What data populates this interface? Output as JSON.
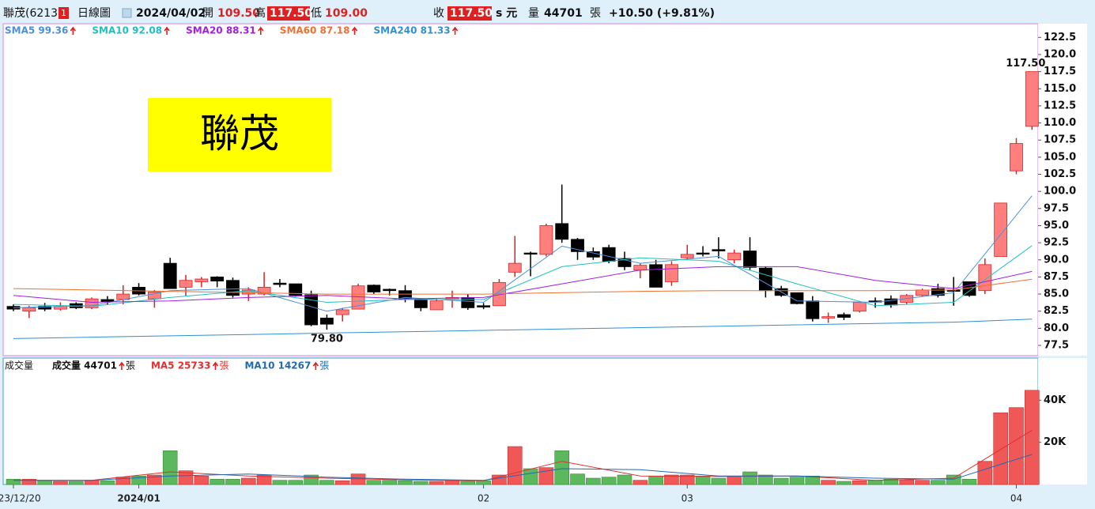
{
  "header": {
    "name": "聯茂(6213)",
    "badge": "1",
    "period": "日線圖",
    "date": "2024/04/02",
    "open_label": "開",
    "open": "109.50",
    "high_label": "高",
    "high": "117.50",
    "low_label": "低",
    "low": "109.00",
    "close_label": "收",
    "close": "117.50",
    "unit": "s 元",
    "volume_label": "量",
    "volume": "44701",
    "volume_unit": "張",
    "change": "+10.50 (+9.81%)"
  },
  "overlay_label": "聯茂",
  "chart_data": [
    {
      "type": "candlestick",
      "ylim": [
        76,
        124.5
      ],
      "yticks": [
        77.5,
        {
          "value": 80,
          "label": "80.0"
        },
        82.5,
        {
          "value": 85,
          "label": "85.0"
        },
        87.5,
        {
          "value": 90,
          "label": "90.0"
        },
        92.5,
        {
          "value": 95,
          "label": "95.0"
        },
        97.5,
        {
          "value": 100,
          "label": "100.0"
        },
        102.5,
        {
          "value": 105,
          "label": "105.0"
        },
        107.5,
        {
          "value": 110,
          "label": "110.0"
        },
        112.5,
        {
          "value": 115,
          "label": "115.0"
        },
        117.5,
        {
          "value": 120,
          "label": "120.0"
        },
        122.5
      ],
      "x_labels": [
        {
          "index": 0,
          "label": "2023/12/20"
        },
        {
          "index": 8,
          "label": "2024/01"
        },
        {
          "index": 30,
          "label": "02"
        },
        {
          "index": 43,
          "label": "03"
        },
        {
          "index": 64,
          "label": "04"
        }
      ],
      "up_color": "#ff7f7f",
      "up_edge": "#e02020",
      "down_color": "#000000",
      "open": [
        83.2,
        82.5,
        83.2,
        82.8,
        83.6,
        83,
        84.2,
        84.2,
        86,
        84.3,
        89.5,
        86,
        86.8,
        87.5,
        87,
        85,
        85,
        86.6,
        86.5,
        84.9,
        81.5,
        82,
        82.8,
        86.3,
        85.7,
        85.5,
        84.3,
        82.7,
        84.2,
        84.5,
        83.3,
        83.3,
        88.2,
        91,
        90.8,
        95.3,
        93,
        91.2,
        91.8,
        90.2,
        88.5,
        89.3,
        86.8,
        90.3,
        91,
        91.5,
        90,
        91.3,
        88.8,
        85.8,
        85.2,
        84,
        81.5,
        82,
        82.5,
        84,
        84.3,
        83.8,
        84.8,
        85.8,
        85.6,
        86.8,
        85.5,
        90.5,
        103,
        109.5
      ],
      "high": [
        83.5,
        83.3,
        83.7,
        83.8,
        83.8,
        84.5,
        84.7,
        86.3,
        86.6,
        85.6,
        90.3,
        87.8,
        87.5,
        87.6,
        87.4,
        86,
        88.2,
        87.2,
        86.5,
        85.5,
        82,
        83,
        86.5,
        86.4,
        85.8,
        86.3,
        84.3,
        84.3,
        85.5,
        85,
        83.7,
        87.2,
        93.5,
        91.2,
        95.3,
        101,
        93.2,
        91.8,
        92.2,
        91.2,
        89.5,
        90,
        89.8,
        92.2,
        92,
        93.3,
        91.5,
        93.3,
        89,
        86.2,
        85.2,
        84.7,
        82.3,
        82.3,
        83.9,
        84.5,
        84.8,
        85,
        85.8,
        86.5,
        87.5,
        86.8,
        90.2,
        98.3,
        107.8,
        117.5
      ],
      "low": [
        82.5,
        81.5,
        82.5,
        82.6,
        82.8,
        82.8,
        83.5,
        83.5,
        84.8,
        83,
        85.8,
        84.7,
        86,
        86,
        84.5,
        84,
        84.8,
        86,
        84.6,
        80.3,
        79.8,
        81,
        82.8,
        85,
        84.8,
        83.8,
        82.5,
        82.7,
        83,
        82.7,
        82.8,
        83.3,
        87.5,
        87.6,
        90.5,
        92.5,
        90,
        90,
        89.5,
        88.5,
        87.3,
        86,
        86.2,
        90,
        90.5,
        90.2,
        89.5,
        88.5,
        84.5,
        84.6,
        83.5,
        81,
        80.8,
        81.2,
        82.3,
        83,
        83,
        83.5,
        84.6,
        84.5,
        83.3,
        84.6,
        85,
        90.5,
        102.5,
        109
      ],
      "close": [
        82.8,
        83,
        82.8,
        83.2,
        83,
        84.3,
        83.9,
        85,
        85,
        85.3,
        85.8,
        87,
        87.2,
        86.9,
        84.8,
        85.6,
        86,
        86.4,
        84.8,
        80.5,
        80.6,
        82.7,
        86.2,
        85.3,
        85.5,
        84.2,
        83,
        84,
        84.5,
        83,
        83.1,
        86.7,
        89.5,
        90.9,
        95,
        93,
        91.2,
        90.4,
        89.8,
        89,
        89.2,
        86,
        89.3,
        90.8,
        90.9,
        91.3,
        91,
        88.9,
        85.5,
        84.8,
        83.6,
        81.4,
        81.7,
        81.6,
        83.8,
        83.9,
        83.4,
        84.8,
        85.6,
        84.8,
        85.4,
        84.8,
        89.3,
        98.3,
        107,
        117.5
      ],
      "annotations": [
        {
          "index": 20,
          "text": "79.80"
        },
        {
          "index": 65,
          "text": "117.50"
        }
      ],
      "series": [
        {
          "name": "SMA5 99.36",
          "color": "#4a90d9",
          "x": [
            0,
            5,
            10,
            15,
            20,
            25,
            30,
            35,
            40,
            45,
            50,
            55,
            60,
            65
          ],
          "values": [
            83,
            83.3,
            85.5,
            85.8,
            82.5,
            84.5,
            83.8,
            92,
            89.5,
            90.5,
            84,
            83.8,
            85.2,
            99.36
          ]
        },
        {
          "name": "SMA10 92.08",
          "color": "#20c0c0",
          "x": [
            0,
            5,
            10,
            15,
            20,
            25,
            30,
            35,
            40,
            45,
            50,
            55,
            60,
            65
          ],
          "values": [
            83.5,
            83.2,
            84.5,
            85.5,
            83.8,
            84.2,
            84.2,
            89,
            90.3,
            89.8,
            86.5,
            83.3,
            83.8,
            92.08
          ]
        },
        {
          "name": "SMA20 88.31",
          "color": "#a020e0",
          "x": [
            0,
            5,
            10,
            15,
            20,
            25,
            30,
            35,
            40,
            45,
            50,
            55,
            60,
            65
          ],
          "values": [
            84.8,
            83.8,
            84,
            84.5,
            84.8,
            84.3,
            84.5,
            86.5,
            88.5,
            89,
            89,
            87,
            85.8,
            88.31
          ]
        },
        {
          "name": "SMA60 87.18",
          "color": "#f07030",
          "x": [
            0,
            5,
            10,
            15,
            20,
            25,
            30,
            35,
            40,
            45,
            50,
            55,
            60,
            65
          ],
          "values": [
            85.8,
            85.6,
            85.4,
            85.2,
            85,
            85,
            85,
            85.2,
            85.4,
            85.5,
            85.5,
            85.5,
            85.6,
            87.18
          ]
        },
        {
          "name": "SMA240 81.33",
          "color": "#3090d0",
          "x": [
            0,
            5,
            10,
            15,
            20,
            25,
            30,
            35,
            40,
            45,
            50,
            55,
            60,
            65
          ],
          "values": [
            78.5,
            78.7,
            78.9,
            79.1,
            79.3,
            79.5,
            79.7,
            79.9,
            80.1,
            80.3,
            80.5,
            80.7,
            80.9,
            81.33
          ]
        }
      ]
    },
    {
      "type": "volume",
      "title": "成交量",
      "ylim": [
        0,
        60000
      ],
      "yticks": [
        {
          "value": 20000,
          "label": "20K"
        },
        {
          "value": 40000,
          "label": "40K"
        }
      ],
      "up_color": "#f05858",
      "down_color": "#5cb85c",
      "values": [
        2500,
        2500,
        1800,
        1500,
        1500,
        2000,
        1800,
        3500,
        4000,
        4500,
        16000,
        6500,
        4000,
        2500,
        2500,
        3000,
        4500,
        2000,
        2000,
        4500,
        2000,
        1800,
        5000,
        2000,
        2000,
        1800,
        1500,
        1500,
        2000,
        1500,
        1800,
        4500,
        18000,
        7500,
        8000,
        16000,
        5000,
        3000,
        3500,
        4500,
        2000,
        4000,
        4500,
        4500,
        4000,
        3000,
        3500,
        6000,
        4500,
        3000,
        3500,
        4000,
        2000,
        1500,
        1800,
        2000,
        2500,
        2200,
        2000,
        2000,
        4500,
        2500,
        11000,
        34000,
        36500,
        44701
      ],
      "legend": {
        "label": "成交量 44701",
        "unit": "張"
      },
      "series": [
        {
          "name": "MA5 25733",
          "unit": "張",
          "color": "#e03030",
          "x": [
            0,
            5,
            10,
            15,
            20,
            25,
            30,
            35,
            40,
            45,
            50,
            55,
            60,
            65
          ],
          "values": [
            2000,
            2000,
            6000,
            4000,
            3000,
            2200,
            1800,
            11000,
            4000,
            3800,
            4000,
            2000,
            3000,
            25733
          ]
        },
        {
          "name": "MA10 14267",
          "unit": "張",
          "color": "#1e6ab4",
          "x": [
            0,
            5,
            10,
            15,
            20,
            25,
            30,
            35,
            40,
            45,
            50,
            55,
            60,
            65
          ],
          "values": [
            2000,
            2000,
            4000,
            5000,
            3500,
            2500,
            2000,
            7500,
            7000,
            4000,
            4000,
            3000,
            2500,
            14267
          ]
        }
      ]
    }
  ]
}
